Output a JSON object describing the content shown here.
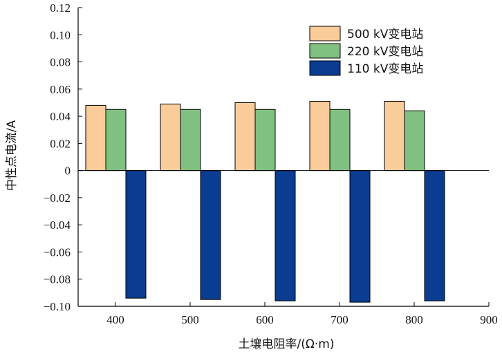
{
  "chart_data": {
    "type": "bar",
    "title": "",
    "xlabel": "土壤电阻率/(Ω·m)",
    "ylabel": "中性点电流/A",
    "xlim": [
      350,
      900
    ],
    "ylim": [
      -0.1,
      0.12
    ],
    "x_ticks": [
      "400",
      "500",
      "600",
      "700",
      "800",
      "900"
    ],
    "y_ticks": [
      "0.12",
      "0.10",
      "0.08",
      "0.06",
      "0.04",
      "0.02",
      "0",
      "−0.02",
      "−0.04",
      "−0.06",
      "−0.08",
      "−0.10"
    ],
    "categories": [
      400,
      500,
      600,
      700,
      800
    ],
    "series": [
      {
        "name": "500 kV变电站",
        "color": "#f9cc9a",
        "values": [
          0.048,
          0.049,
          0.05,
          0.051,
          0.051
        ]
      },
      {
        "name": "220 kV变电站",
        "color": "#80c080",
        "values": [
          0.045,
          0.045,
          0.045,
          0.045,
          0.044
        ]
      },
      {
        "name": "110 kV变电站",
        "color": "#0a3d91",
        "values": [
          -0.094,
          -0.095,
          -0.096,
          -0.097,
          -0.096
        ]
      }
    ],
    "legend_position": "top-right",
    "grid": false
  }
}
